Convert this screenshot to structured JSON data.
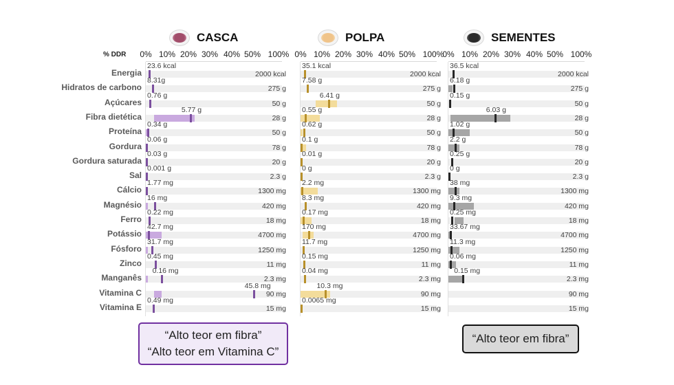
{
  "chart_data": {
    "type": "bar",
    "title": "% DDR",
    "axis_label": "% DDR",
    "axis_ticks": [
      "0%",
      "10%",
      "20%",
      "30%",
      "40%",
      "50%",
      "100%"
    ],
    "axis_note": "broken axis: 0-50% linear, then jump to 100%",
    "categories": [
      "Energia",
      "Hidratos de carbono",
      "Açúcares",
      "Fibra dietética",
      "Proteína",
      "Gordura",
      "Gordura saturada",
      "Sal",
      "Cálcio",
      "Magnésio",
      "Ferro",
      "Potássio",
      "Fósforo",
      "Zinco",
      "Manganês",
      "Vitamina C",
      "Vitamina E"
    ],
    "reference_ddr": [
      "2000 kcal",
      "275 g",
      "50 g",
      "28 g",
      "50 g",
      "78 g",
      "20 g",
      "2.3 g",
      "1300 mg",
      "420 mg",
      "18 mg",
      "4700 mg",
      "1250 mg",
      "11 mg",
      "2.3 mg",
      "90 mg",
      "15 mg"
    ],
    "reference_values": [
      2000,
      275,
      50,
      28,
      50,
      78,
      20,
      2.3,
      1300,
      420,
      18,
      4700,
      1250,
      11,
      2.3,
      90,
      15
    ],
    "series": [
      {
        "name": "CASCA",
        "color": "#7b4f9e",
        "band_color": "#c9a9df",
        "labels": [
          "23.6 kcal",
          "8.31g",
          "0.76 g",
          "5.77 g",
          "0.34 g",
          "0.06 g",
          "0.03 g",
          "0.001 g",
          "1.77 mg",
          "16 mg",
          "0.22 mg",
          "42.7 mg",
          "31.7 mg",
          "0.45 mg",
          "0.16 mg",
          "45.8 mg",
          "0.49 mg"
        ],
        "values": [
          23.6,
          8.31,
          0.76,
          5.77,
          0.34,
          0.06,
          0.03,
          0.001,
          1.77,
          16,
          0.22,
          42.7,
          31.7,
          0.45,
          0.16,
          45.8,
          0.49
        ],
        "bands_pct": [
          null,
          null,
          null,
          [
            4,
            23
          ],
          [
            0,
            1
          ],
          null,
          null,
          null,
          null,
          [
            0,
            1
          ],
          null,
          [
            0,
            7.5
          ],
          [
            0,
            1
          ],
          null,
          [
            0,
            0.5
          ],
          [
            4,
            7.5
          ],
          null
        ]
      },
      {
        "name": "POLPA",
        "color": "#b8902a",
        "band_color": "#f3dc9b",
        "labels": [
          "35.1 kcal",
          "7.58 g",
          "6.41 g",
          "0.55 g",
          "0.62 g",
          "0.1 g",
          "0.01 g",
          "0 g",
          "2.2 mg",
          "8.3 mg",
          "0.17 mg",
          "170 mg",
          "11.7 mg",
          "0.15 mg",
          "0.04 mg",
          "10.3 mg",
          "0.0065 mg"
        ],
        "values": [
          35.1,
          7.58,
          6.41,
          0.55,
          0.62,
          0.1,
          0.01,
          0,
          2.2,
          8.3,
          0.17,
          170,
          11.7,
          0.15,
          0.04,
          10.3,
          0.0065
        ],
        "bands_pct": [
          null,
          null,
          [
            7,
            17
          ],
          [
            0,
            9
          ],
          [
            0,
            1
          ],
          [
            0,
            2.5
          ],
          null,
          null,
          [
            0,
            8
          ],
          null,
          [
            0,
            5
          ],
          [
            1,
            6
          ],
          null,
          null,
          null,
          [
            0,
            14
          ],
          null
        ]
      },
      {
        "name": "SEMENTES",
        "color": "#262626",
        "band_color": "#a6a6a6",
        "labels": [
          "36.5 kcal",
          "6.18 g",
          "0.15 g",
          "6.03 g",
          "1.02 g",
          "2.2 g",
          "0.25 g",
          "0 g",
          "38 mg",
          "9.3 mg",
          "0.25 mg",
          "33.67 mg",
          "11.3 mg",
          "0.06 mg",
          "0.15 mg",
          "",
          ""
        ],
        "values": [
          36.5,
          6.18,
          0.15,
          6.03,
          1.02,
          2.2,
          0.25,
          0,
          38,
          9.3,
          0.25,
          33.67,
          11.3,
          0.06,
          0.15,
          null,
          null
        ],
        "bands_pct": [
          null,
          [
            0,
            2
          ],
          null,
          [
            1,
            29
          ],
          [
            0,
            10
          ],
          [
            0,
            5
          ],
          null,
          null,
          [
            0,
            5
          ],
          [
            0,
            12
          ],
          [
            3,
            7
          ],
          [
            0,
            1.5
          ],
          [
            0,
            5
          ],
          [
            0,
            3.5
          ],
          [
            0,
            6.5
          ],
          null,
          null
        ]
      }
    ]
  },
  "claims": {
    "casca": [
      "“Alto teor em fibra”",
      "“Alto teor em Vitamina C”"
    ],
    "sementes": [
      "“Alto teor em fibra”"
    ]
  }
}
